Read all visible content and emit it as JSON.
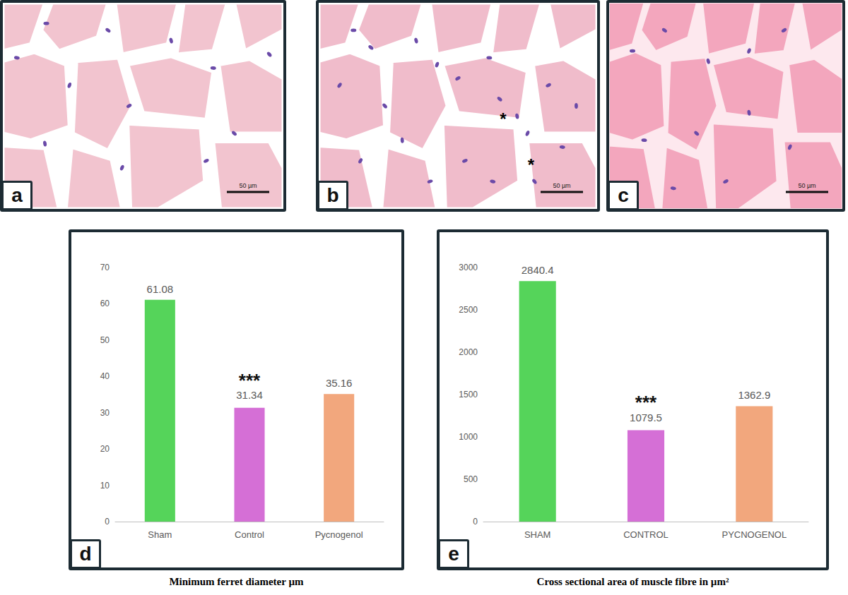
{
  "images": [
    {
      "label": "a",
      "scale_bar": "50 µm",
      "markers": []
    },
    {
      "label": "b",
      "scale_bar": "50 µm",
      "markers": [
        "*",
        "*"
      ]
    },
    {
      "label": "c",
      "scale_bar": "50 µm",
      "markers": []
    }
  ],
  "chart_data": [
    {
      "type": "bar",
      "label": "d",
      "title": "Minimum ferret diameter µm",
      "categories": [
        "Sham",
        "Control",
        "Pycnogenol"
      ],
      "values": [
        61.08,
        31.34,
        35.16
      ],
      "colors": [
        "#55d45a",
        "#d56fd6",
        "#f2a77d"
      ],
      "ylim": [
        0,
        70
      ],
      "yticks": [
        0,
        10,
        20,
        30,
        40,
        50,
        60,
        70
      ],
      "grid": false,
      "data_labels": true,
      "annotations": [
        {
          "category": "Control",
          "text": "***"
        }
      ]
    },
    {
      "type": "bar",
      "label": "e",
      "title": "Cross sectional area of muscle fibre in µm²",
      "categories": [
        "SHAM",
        "CONTROL",
        "PYCNOGENOL"
      ],
      "values": [
        2840.4,
        1079.5,
        1362.9
      ],
      "colors": [
        "#55d45a",
        "#d56fd6",
        "#f2a77d"
      ],
      "ylim": [
        0,
        3000
      ],
      "yticks": [
        0,
        500,
        1000,
        1500,
        2000,
        2500,
        3000
      ],
      "grid": false,
      "data_labels": true,
      "annotations": [
        {
          "category": "CONTROL",
          "text": "***"
        }
      ]
    }
  ]
}
